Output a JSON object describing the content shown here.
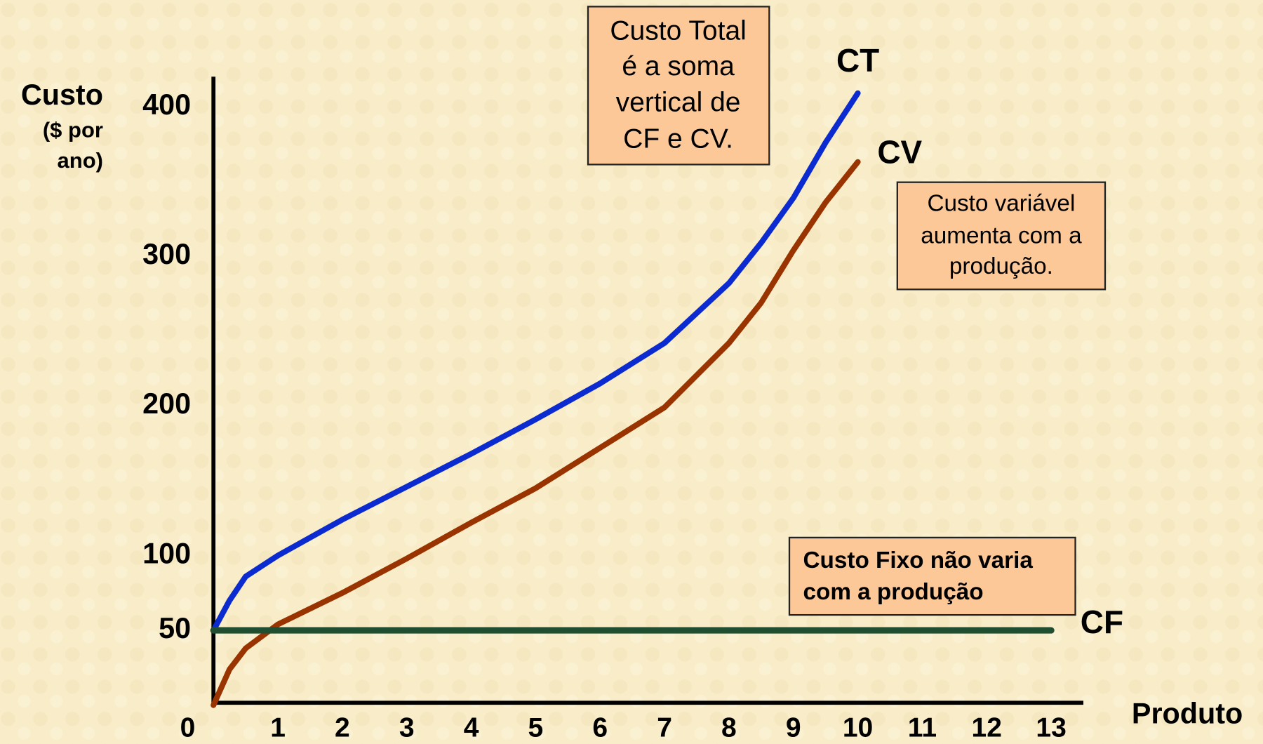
{
  "chart_data": {
    "type": "line",
    "x_label": "Produto",
    "y_label_lines": [
      "Custo",
      "($ por",
      "ano)"
    ],
    "xlim": [
      0,
      13.5
    ],
    "ylim": [
      0,
      420
    ],
    "xticks": [
      0,
      1,
      2,
      3,
      4,
      5,
      6,
      7,
      8,
      9,
      10,
      11,
      12,
      13
    ],
    "yticks": [
      50,
      100,
      200,
      300,
      400
    ],
    "grid": false,
    "series": [
      {
        "name": "CT",
        "color": "#0b2bd0",
        "x": [
          0,
          0.25,
          0.5,
          1,
          2,
          3,
          4,
          5,
          6,
          7,
          8,
          8.5,
          9,
          9.5,
          10
        ],
        "values": [
          50,
          70,
          86,
          100,
          124,
          146,
          168,
          191,
          215,
          242,
          282,
          309,
          339,
          376,
          409
        ]
      },
      {
        "name": "CV",
        "color": "#993300",
        "x": [
          0,
          0.25,
          0.5,
          1,
          2,
          3,
          4,
          5,
          6,
          7,
          8,
          8.5,
          9,
          9.5,
          10
        ],
        "values": [
          0,
          24,
          38,
          54,
          75,
          98,
          122,
          145,
          172,
          199,
          242,
          269,
          304,
          336,
          363
        ]
      },
      {
        "name": "CF",
        "color": "#1f4f30",
        "x": [
          0,
          13
        ],
        "values": [
          50,
          50
        ]
      }
    ],
    "annotations": [
      {
        "lines": [
          "Custo Total",
          "é a soma",
          "vertical de",
          "CF e CV."
        ]
      },
      {
        "lines": [
          "Custo variável",
          "aumenta com a",
          "produção."
        ]
      },
      {
        "lines": [
          "Custo Fixo não varia",
          "com a produção"
        ]
      }
    ]
  }
}
